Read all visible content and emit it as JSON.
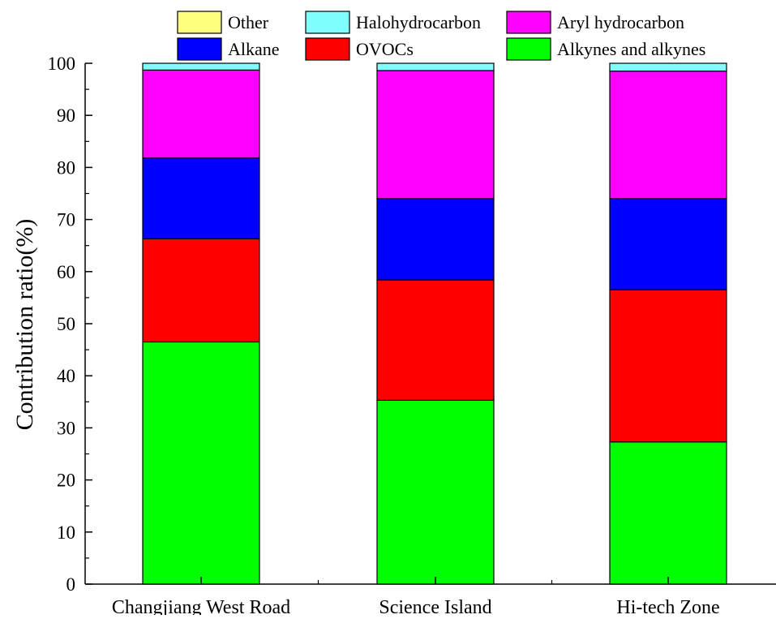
{
  "chart_data": {
    "type": "bar",
    "stacked": true,
    "title": "",
    "xlabel": "",
    "ylabel": "Contribution ratio(%)",
    "ylim": [
      0,
      100
    ],
    "yticks": [
      0,
      10,
      20,
      30,
      40,
      50,
      60,
      70,
      80,
      90,
      100
    ],
    "categories": [
      "Changjiang West Road",
      "Science Island",
      "Hi-tech Zone"
    ],
    "grid": false,
    "legend_position": "top",
    "legend_order": [
      "Other",
      "Halohydrocarbon",
      "Aryl hydrocarbon",
      "Alkane",
      "OVOCs",
      "Alkynes and alkynes"
    ],
    "series": [
      {
        "name": "Alkynes and alkynes",
        "color": "#00ff00",
        "values": [
          46.5,
          35.3,
          27.3
        ]
      },
      {
        "name": "OVOCs",
        "color": "#ff0000",
        "values": [
          19.8,
          23.1,
          29.2
        ]
      },
      {
        "name": "Alkane",
        "color": "#0000ff",
        "values": [
          15.5,
          15.6,
          17.5
        ]
      },
      {
        "name": "Aryl hydrocarbon",
        "color": "#ff00ff",
        "values": [
          16.9,
          24.6,
          24.5
        ]
      },
      {
        "name": "Halohydrocarbon",
        "color": "#80ffff",
        "values": [
          1.3,
          1.4,
          1.5
        ]
      },
      {
        "name": "Other",
        "color": "#ffff80",
        "values": [
          0.0,
          0.0,
          0.0
        ]
      }
    ]
  }
}
